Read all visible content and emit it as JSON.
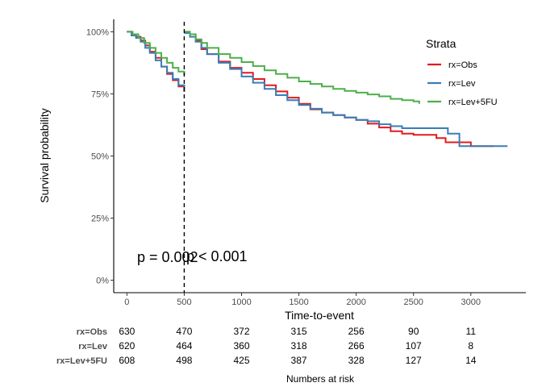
{
  "chart_data": {
    "type": "line",
    "subtype": "kaplan-meier step",
    "xlabel": "Time-to-event",
    "ylabel": "Survival probability",
    "xlim": [
      -115,
      3480
    ],
    "ylim": [
      -0.05,
      1.05
    ],
    "x_ticks": [
      0,
      500,
      1000,
      1500,
      2000,
      2500,
      3000
    ],
    "y_ticks": [
      {
        "value": 0,
        "label": "0%"
      },
      {
        "value": 0.25,
        "label": "25%"
      },
      {
        "value": 0.5,
        "label": "50%"
      },
      {
        "value": 0.75,
        "label": "75%"
      },
      {
        "value": 1,
        "label": "100%"
      }
    ],
    "grid": false,
    "vline_x": 500,
    "annotations": [
      "p = 0.002",
      "p < 0.001"
    ],
    "legend": {
      "title": "Strata",
      "position": "top-right"
    },
    "series": [
      {
        "name": "rx=Obs",
        "color": "#E41A1C",
        "segment1": [
          [
            0,
            1
          ],
          [
            40,
            0.99
          ],
          [
            80,
            0.98
          ],
          [
            120,
            0.965
          ],
          [
            160,
            0.945
          ],
          [
            200,
            0.92
          ],
          [
            250,
            0.895
          ],
          [
            300,
            0.86
          ],
          [
            350,
            0.83
          ],
          [
            400,
            0.805
          ],
          [
            450,
            0.78
          ],
          [
            500,
            0.758
          ]
        ],
        "segment2": [
          [
            500,
            1
          ],
          [
            550,
            0.99
          ],
          [
            600,
            0.965
          ],
          [
            650,
            0.93
          ],
          [
            700,
            0.91
          ],
          [
            800,
            0.88
          ],
          [
            900,
            0.855
          ],
          [
            1000,
            0.835
          ],
          [
            1100,
            0.81
          ],
          [
            1200,
            0.785
          ],
          [
            1300,
            0.76
          ],
          [
            1400,
            0.735
          ],
          [
            1500,
            0.71
          ],
          [
            1600,
            0.688
          ],
          [
            1700,
            0.675
          ],
          [
            1800,
            0.665
          ],
          [
            1900,
            0.655
          ],
          [
            2000,
            0.645
          ],
          [
            2100,
            0.63
          ],
          [
            2200,
            0.615
          ],
          [
            2300,
            0.6
          ],
          [
            2400,
            0.59
          ],
          [
            2500,
            0.585
          ],
          [
            2600,
            0.585
          ],
          [
            2700,
            0.572
          ],
          [
            2780,
            0.555
          ],
          [
            3000,
            0.54
          ],
          [
            3200,
            0.54
          ]
        ]
      },
      {
        "name": "rx=Lev",
        "color": "#377EB8",
        "segment1": [
          [
            0,
            1
          ],
          [
            40,
            0.985
          ],
          [
            80,
            0.975
          ],
          [
            120,
            0.96
          ],
          [
            160,
            0.935
          ],
          [
            200,
            0.915
          ],
          [
            250,
            0.885
          ],
          [
            300,
            0.86
          ],
          [
            350,
            0.835
          ],
          [
            400,
            0.81
          ],
          [
            450,
            0.785
          ],
          [
            500,
            0.762
          ]
        ],
        "segment2": [
          [
            500,
            0.995
          ],
          [
            550,
            0.98
          ],
          [
            600,
            0.96
          ],
          [
            650,
            0.935
          ],
          [
            700,
            0.91
          ],
          [
            800,
            0.875
          ],
          [
            900,
            0.85
          ],
          [
            1000,
            0.82
          ],
          [
            1100,
            0.795
          ],
          [
            1200,
            0.77
          ],
          [
            1300,
            0.745
          ],
          [
            1400,
            0.725
          ],
          [
            1500,
            0.705
          ],
          [
            1600,
            0.69
          ],
          [
            1700,
            0.675
          ],
          [
            1800,
            0.665
          ],
          [
            1900,
            0.655
          ],
          [
            2000,
            0.645
          ],
          [
            2100,
            0.64
          ],
          [
            2200,
            0.628
          ],
          [
            2300,
            0.62
          ],
          [
            2400,
            0.612
          ],
          [
            2500,
            0.612
          ],
          [
            2600,
            0.612
          ],
          [
            2700,
            0.612
          ],
          [
            2800,
            0.59
          ],
          [
            2900,
            0.59
          ],
          [
            2900,
            0.54
          ],
          [
            3000,
            0.54
          ],
          [
            3200,
            0.54
          ],
          [
            3320,
            0.54
          ]
        ]
      },
      {
        "name": "rx=Lev+5FU",
        "color": "#4DAF4A",
        "segment1": [
          [
            0,
            1
          ],
          [
            50,
            0.99
          ],
          [
            100,
            0.975
          ],
          [
            150,
            0.955
          ],
          [
            200,
            0.935
          ],
          [
            250,
            0.915
          ],
          [
            300,
            0.895
          ],
          [
            350,
            0.875
          ],
          [
            400,
            0.855
          ],
          [
            450,
            0.84
          ],
          [
            500,
            0.825
          ]
        ],
        "segment2": [
          [
            500,
            1
          ],
          [
            550,
            0.99
          ],
          [
            600,
            0.97
          ],
          [
            650,
            0.955
          ],
          [
            700,
            0.935
          ],
          [
            800,
            0.91
          ],
          [
            900,
            0.895
          ],
          [
            1000,
            0.878
          ],
          [
            1100,
            0.862
          ],
          [
            1200,
            0.845
          ],
          [
            1300,
            0.83
          ],
          [
            1400,
            0.815
          ],
          [
            1500,
            0.8
          ],
          [
            1600,
            0.79
          ],
          [
            1700,
            0.78
          ],
          [
            1800,
            0.77
          ],
          [
            1900,
            0.762
          ],
          [
            2000,
            0.755
          ],
          [
            2100,
            0.748
          ],
          [
            2200,
            0.74
          ],
          [
            2300,
            0.73
          ],
          [
            2400,
            0.725
          ],
          [
            2500,
            0.72
          ],
          [
            2550,
            0.71
          ]
        ]
      }
    ],
    "risk_table": {
      "title": "Numbers at risk",
      "times": [
        0,
        500,
        1000,
        1500,
        2000,
        2500,
        3000
      ],
      "rows": [
        {
          "label": "rx=Obs",
          "counts": [
            "630",
            "470",
            "372",
            "315",
            "256",
            "90",
            "11"
          ]
        },
        {
          "label": "rx=Lev",
          "counts": [
            "620",
            "464",
            "360",
            "318",
            "266",
            "107",
            "8"
          ]
        },
        {
          "label": "rx=Lev+5FU",
          "counts": [
            "608",
            "498",
            "425",
            "387",
            "328",
            "127",
            "14"
          ]
        }
      ]
    }
  }
}
